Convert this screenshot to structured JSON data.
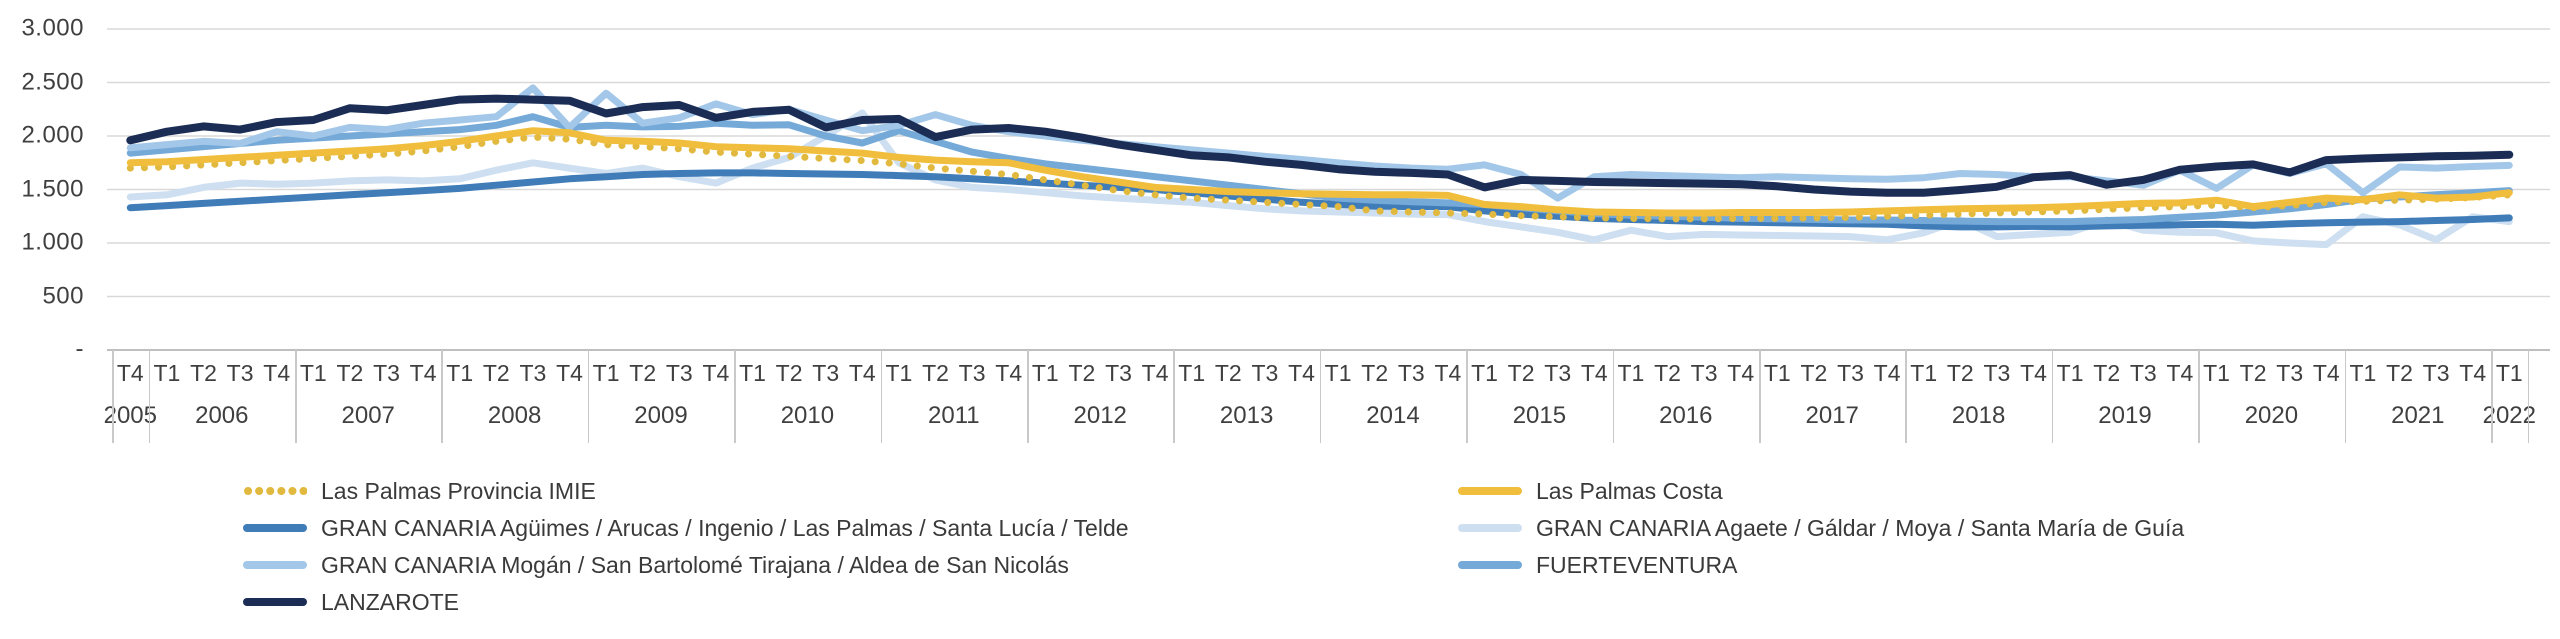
{
  "chart_data": {
    "type": "line",
    "title": "",
    "xlabel": "",
    "ylabel": "",
    "grid": true,
    "legend_position": "bottom-two-columns",
    "y_axis": {
      "tick_labels": [
        "-",
        "500",
        "1.000",
        "1.500",
        "2.000",
        "2.500",
        "3.000"
      ],
      "tick_values": [
        0,
        500,
        1000,
        1500,
        2000,
        2500,
        3000
      ],
      "range": [
        0,
        3000
      ]
    },
    "x_axis": {
      "quarter_labels": [
        "T4",
        "T1",
        "T2",
        "T3",
        "T4",
        "T1",
        "T2",
        "T3",
        "T4",
        "T1",
        "T2",
        "T3",
        "T4",
        "T1",
        "T2",
        "T3",
        "T4",
        "T1",
        "T2",
        "T3",
        "T4",
        "T1",
        "T2",
        "T3",
        "T4",
        "T1",
        "T2",
        "T3",
        "T4",
        "T1",
        "T2",
        "T3",
        "T4",
        "T1",
        "T2",
        "T3",
        "T4",
        "T1",
        "T2",
        "T3",
        "T4",
        "T1",
        "T2",
        "T3",
        "T4",
        "T1",
        "T2",
        "T3",
        "T4",
        "T1",
        "T2",
        "T3",
        "T4",
        "T1",
        "T2",
        "T3",
        "T4",
        "T1",
        "T2",
        "T3",
        "T4",
        "T1",
        "T2",
        "T3",
        "T4",
        "T1"
      ],
      "year_groups": [
        {
          "label": "2005",
          "quarters": 1
        },
        {
          "label": "2006",
          "quarters": 4
        },
        {
          "label": "2007",
          "quarters": 4
        },
        {
          "label": "2008",
          "quarters": 4
        },
        {
          "label": "2009",
          "quarters": 4
        },
        {
          "label": "2010",
          "quarters": 4
        },
        {
          "label": "2011",
          "quarters": 4
        },
        {
          "label": "2012",
          "quarters": 4
        },
        {
          "label": "2013",
          "quarters": 4
        },
        {
          "label": "2014",
          "quarters": 4
        },
        {
          "label": "2015",
          "quarters": 4
        },
        {
          "label": "2016",
          "quarters": 4
        },
        {
          "label": "2017",
          "quarters": 4
        },
        {
          "label": "2018",
          "quarters": 4
        },
        {
          "label": "2019",
          "quarters": 4
        },
        {
          "label": "2020",
          "quarters": 4
        },
        {
          "label": "2021",
          "quarters": 4
        },
        {
          "label": "2022",
          "quarters": 1
        }
      ]
    },
    "series": [
      {
        "name": "Las Palmas Provincia IMIE",
        "color": "#E2B93F",
        "style": "dotted",
        "values": [
          1700,
          1710,
          1730,
          1750,
          1770,
          1790,
          1810,
          1830,
          1860,
          1900,
          1950,
          1990,
          1970,
          1920,
          1900,
          1880,
          1850,
          1830,
          1810,
          1790,
          1770,
          1740,
          1700,
          1670,
          1640,
          1590,
          1540,
          1490,
          1450,
          1420,
          1400,
          1380,
          1360,
          1340,
          1300,
          1290,
          1280,
          1270,
          1255,
          1245,
          1235,
          1230,
          1225,
          1225,
          1230,
          1230,
          1235,
          1240,
          1250,
          1260,
          1270,
          1280,
          1290,
          1300,
          1315,
          1330,
          1340,
          1355,
          1330,
          1350,
          1380,
          1390,
          1400,
          1410,
          1425,
          1450
        ]
      },
      {
        "name": "Las Palmas Costa",
        "color": "#F0BE3C",
        "style": "solid",
        "values": [
          1750,
          1760,
          1780,
          1800,
          1820,
          1840,
          1860,
          1880,
          1910,
          1950,
          2000,
          2050,
          2030,
          1960,
          1950,
          1935,
          1900,
          1890,
          1880,
          1860,
          1840,
          1800,
          1775,
          1760,
          1750,
          1680,
          1620,
          1570,
          1520,
          1500,
          1480,
          1470,
          1460,
          1455,
          1450,
          1450,
          1445,
          1360,
          1340,
          1310,
          1290,
          1285,
          1280,
          1280,
          1285,
          1285,
          1285,
          1290,
          1300,
          1310,
          1320,
          1325,
          1330,
          1340,
          1355,
          1370,
          1375,
          1400,
          1340,
          1380,
          1420,
          1405,
          1450,
          1420,
          1430,
          1470
        ]
      },
      {
        "name": "GRAN CANARIA Agüimes / Arucas / Ingenio / Las Palmas / Santa Lucía / Telde",
        "color": "#3F7CB8",
        "style": "solid",
        "values": [
          1330,
          1350,
          1370,
          1390,
          1410,
          1430,
          1450,
          1470,
          1490,
          1510,
          1540,
          1570,
          1600,
          1620,
          1640,
          1650,
          1655,
          1655,
          1650,
          1645,
          1640,
          1630,
          1620,
          1600,
          1580,
          1560,
          1540,
          1520,
          1500,
          1470,
          1440,
          1410,
          1380,
          1360,
          1345,
          1340,
          1340,
          1300,
          1270,
          1250,
          1230,
          1220,
          1210,
          1200,
          1195,
          1190,
          1185,
          1180,
          1175,
          1160,
          1150,
          1150,
          1155,
          1150,
          1160,
          1165,
          1170,
          1175,
          1165,
          1180,
          1190,
          1195,
          1200,
          1210,
          1220,
          1235
        ]
      },
      {
        "name": "GRAN CANARIA Agaete / Gáldar / Moya / Santa María de Guía",
        "color": "#CDDFF0",
        "style": "solid",
        "values": [
          1430,
          1450,
          1520,
          1560,
          1550,
          1560,
          1580,
          1590,
          1580,
          1600,
          1680,
          1750,
          1700,
          1650,
          1700,
          1620,
          1560,
          1700,
          1800,
          2000,
          2215,
          1750,
          1590,
          1520,
          1500,
          1470,
          1440,
          1420,
          1400,
          1380,
          1350,
          1320,
          1300,
          1290,
          1280,
          1270,
          1265,
          1200,
          1150,
          1100,
          1030,
          1120,
          1060,
          1080,
          1075,
          1070,
          1065,
          1060,
          1030,
          1095,
          1215,
          1060,
          1080,
          1100,
          1215,
          1120,
          1100,
          1095,
          1020,
          1000,
          985,
          1245,
          1170,
          1030,
          1245,
          1200
        ]
      },
      {
        "name": "GRAN CANARIA Mogán / San Bartolomé Tirajana / Aldea de San Nicolás",
        "color": "#A3C7E8",
        "style": "solid",
        "values": [
          1890,
          1920,
          1950,
          1930,
          2040,
          2000,
          2080,
          2060,
          2120,
          2150,
          2180,
          2450,
          2080,
          2400,
          2120,
          2170,
          2300,
          2200,
          2250,
          2150,
          2050,
          2100,
          2200,
          2100,
          2040,
          2000,
          1960,
          1930,
          1900,
          1870,
          1840,
          1810,
          1780,
          1750,
          1720,
          1700,
          1690,
          1730,
          1640,
          1420,
          1620,
          1640,
          1630,
          1620,
          1610,
          1620,
          1610,
          1600,
          1595,
          1610,
          1650,
          1640,
          1620,
          1620,
          1580,
          1540,
          1680,
          1510,
          1730,
          1650,
          1740,
          1470,
          1710,
          1700,
          1715,
          1725
        ]
      },
      {
        "name": "FUERTEVENTURA",
        "color": "#74A9D8",
        "style": "solid",
        "values": [
          1840,
          1870,
          1900,
          1930,
          1960,
          1980,
          2000,
          2020,
          2040,
          2060,
          2100,
          2180,
          2080,
          2100,
          2085,
          2090,
          2120,
          2100,
          2105,
          2000,
          1935,
          2050,
          1950,
          1850,
          1790,
          1740,
          1700,
          1660,
          1620,
          1580,
          1540,
          1500,
          1460,
          1420,
          1400,
          1385,
          1375,
          1360,
          1330,
          1300,
          1275,
          1260,
          1250,
          1240,
          1230,
          1225,
          1220,
          1215,
          1215,
          1210,
          1205,
          1200,
          1200,
          1200,
          1210,
          1220,
          1240,
          1260,
          1290,
          1320,
          1360,
          1410,
          1430,
          1450,
          1470,
          1490
        ]
      },
      {
        "name": "LANZAROTE",
        "color": "#1B2C55",
        "style": "solid",
        "values": [
          1960,
          2040,
          2090,
          2060,
          2130,
          2150,
          2260,
          2240,
          2290,
          2340,
          2350,
          2340,
          2330,
          2210,
          2270,
          2290,
          2170,
          2225,
          2245,
          2080,
          2150,
          2160,
          1990,
          2060,
          2075,
          2040,
          1985,
          1920,
          1870,
          1820,
          1800,
          1760,
          1730,
          1690,
          1665,
          1655,
          1640,
          1520,
          1590,
          1580,
          1570,
          1565,
          1560,
          1555,
          1550,
          1530,
          1500,
          1480,
          1470,
          1470,
          1495,
          1525,
          1615,
          1635,
          1545,
          1590,
          1685,
          1715,
          1735,
          1660,
          1775,
          1790,
          1800,
          1810,
          1815,
          1825
        ]
      }
    ],
    "legend": {
      "left_column_series": [
        0,
        2,
        4,
        6
      ],
      "right_column_series": [
        1,
        3,
        5
      ]
    },
    "draw_order": [
      3,
      2,
      5,
      4,
      0,
      1,
      6
    ],
    "colors": {
      "gridline": "#d9d9d9",
      "axis_line": "#bfbfbf",
      "separator": "#c9c9c9",
      "label_text": "#3f3f3f"
    }
  }
}
